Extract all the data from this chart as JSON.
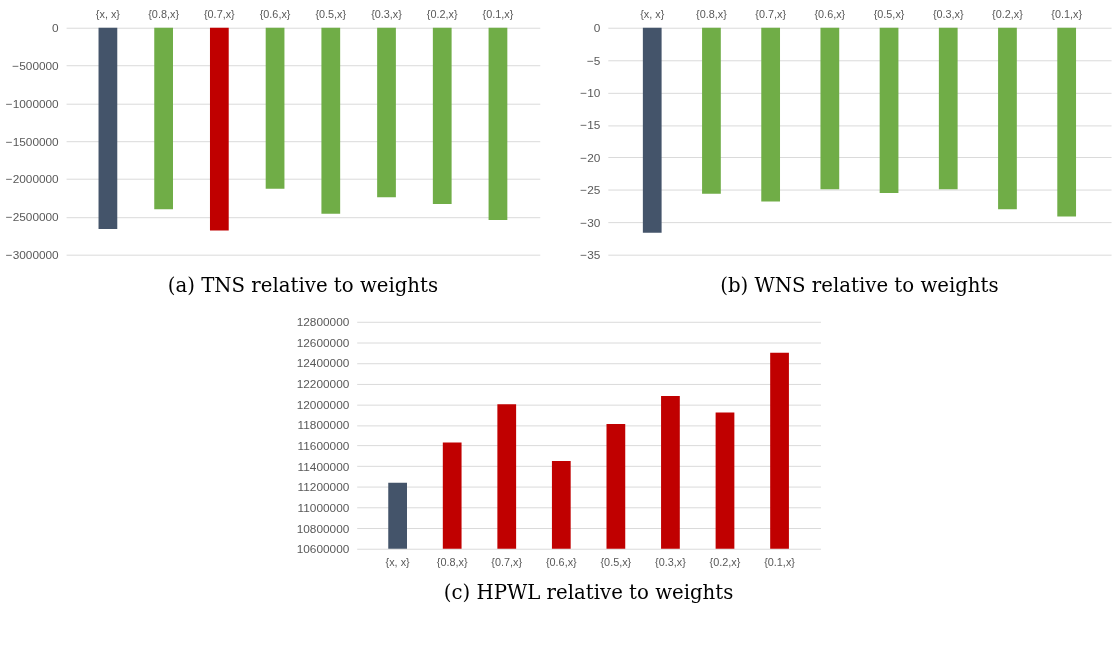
{
  "chart_data": [
    {
      "type": "bar",
      "title": "(a) TNS relative to weights",
      "categories": [
        "{x, x}",
        "{0.8,x}",
        "{0.7,x}",
        "{0.6,x}",
        "{0.5,x}",
        "{0.3,x}",
        "{0.2,x}",
        "{0.1,x}"
      ],
      "values": [
        -2660000,
        -2400000,
        -2680000,
        -2130000,
        -2460000,
        -2240000,
        -2330000,
        -2540000
      ],
      "colors": [
        "#44546a",
        "#70ad47",
        "#c00000",
        "#70ad47",
        "#70ad47",
        "#70ad47",
        "#70ad47",
        "#70ad47"
      ],
      "ylim": [
        -3000000,
        0
      ],
      "yticks": [
        -3000000,
        -2500000,
        -2000000,
        -1500000,
        -1000000,
        -500000,
        0
      ],
      "grid": "y"
    },
    {
      "type": "bar",
      "title": "(b) WNS relative to weights",
      "categories": [
        "{x, x}",
        "{0.8,x}",
        "{0.7,x}",
        "{0.6,x}",
        "{0.5,x}",
        "{0.3,x}",
        "{0.2,x}",
        "{0.1,x}"
      ],
      "values": [
        -31.6,
        -25.6,
        -26.8,
        -24.9,
        -25.5,
        -24.9,
        -28.0,
        -29.1
      ],
      "colors": [
        "#44546a",
        "#70ad47",
        "#70ad47",
        "#70ad47",
        "#70ad47",
        "#70ad47",
        "#70ad47",
        "#70ad47"
      ],
      "ylim": [
        -35,
        0
      ],
      "yticks": [
        -35,
        -30,
        -25,
        -20,
        -15,
        -10,
        -5,
        0
      ],
      "grid": "y"
    },
    {
      "type": "bar",
      "title": "(c) HPWL relative to weights",
      "categories": [
        "{x, x}",
        "{0.8,x}",
        "{0.7,x}",
        "{0.6,x}",
        "{0.5,x}",
        "{0.3,x}",
        "{0.2,x}",
        "{0.1,x}"
      ],
      "values": [
        11240000,
        11630000,
        12000000,
        11450000,
        11810000,
        12080000,
        11920000,
        12500000
      ],
      "colors": [
        "#44546a",
        "#c00000",
        "#c00000",
        "#c00000",
        "#c00000",
        "#c00000",
        "#c00000",
        "#c00000"
      ],
      "ylim": [
        10600000,
        12800000
      ],
      "yticks": [
        10600000,
        10800000,
        11000000,
        11200000,
        11400000,
        11600000,
        11800000,
        12000000,
        12200000,
        12400000,
        12600000,
        12800000
      ],
      "grid": "y"
    }
  ]
}
